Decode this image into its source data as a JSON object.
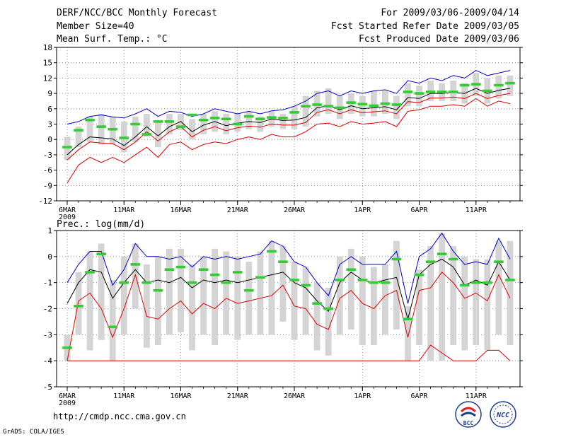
{
  "header": {
    "title": "DERF/NCC/BCC Monthly Forecast",
    "member_size": "Member Size=40",
    "variable": "Mean Surf. Temp.: °C",
    "forecast_period": "For 2009/03/06-2009/04/14",
    "start_date": "Fcst Started Refer Date 2009/03/05",
    "produced_date": "Fcst Produced Date 2009/03/06"
  },
  "footer": {
    "url": "http://cmdp.ncc.cma.gov.cn",
    "credit": "GrADS: COLA/IGES",
    "logo_bcc": "BCC",
    "logo_ncc": "NCC"
  },
  "colors": {
    "box": "#d4d4d4",
    "mean": "#000000",
    "upper": "#0000cc",
    "lower": "#dd0000",
    "median": "#33cc33"
  },
  "chart_data": [
    {
      "type": "box-plume",
      "title": "Mean Surf. Temp.: °C",
      "ylim": [
        -12,
        18
      ],
      "yticks": [
        -12,
        -9,
        -6,
        -3,
        0,
        3,
        6,
        9,
        12,
        15,
        18
      ],
      "xlabel_year": "2009",
      "xticks": [
        {
          "day": 1,
          "label": "6MAR"
        },
        {
          "day": 6,
          "label": "11MAR"
        },
        {
          "day": 11,
          "label": "16MAR"
        },
        {
          "day": 16,
          "label": "21MAR"
        },
        {
          "day": 21,
          "label": "26MAR"
        },
        {
          "day": 27,
          "label": "1APR"
        },
        {
          "day": 32,
          "label": "6APR"
        },
        {
          "day": 37,
          "label": "11APR"
        }
      ],
      "days": 40,
      "mean": [
        -3.0,
        -1.0,
        0.5,
        0.3,
        0.1,
        -1.2,
        0.5,
        2.5,
        0.7,
        2.5,
        3.5,
        1.5,
        2.8,
        3.5,
        2.7,
        3.2,
        3.5,
        3.3,
        4.0,
        3.7,
        3.8,
        4.3,
        6.2,
        6.6,
        5.8,
        6.6,
        6.0,
        6.2,
        6.4,
        5.8,
        8.2,
        8.0,
        9.0,
        9.0,
        9.2,
        9.0,
        10.0,
        9.0,
        9.6,
        10.0
      ],
      "upper": [
        3.0,
        3.5,
        4.5,
        4.8,
        4.4,
        4.2,
        5.0,
        6.0,
        4.5,
        5.5,
        5.3,
        4.5,
        5.0,
        6.0,
        5.5,
        5.0,
        5.5,
        5.0,
        5.6,
        5.8,
        6.5,
        7.5,
        9.0,
        9.5,
        8.5,
        9.5,
        9.0,
        9.5,
        9.7,
        9.0,
        11.5,
        11.0,
        12.0,
        11.5,
        12.5,
        12.0,
        13.5,
        12.5,
        13.0,
        13.5
      ],
      "lower": [
        -8.5,
        -5.0,
        -3.5,
        -4.5,
        -3.5,
        -4.5,
        -3.0,
        -1.5,
        -3.5,
        -1.0,
        -0.5,
        -2.0,
        -1.0,
        -0.5,
        -0.8,
        0.0,
        0.5,
        0.0,
        1.0,
        0.5,
        0.5,
        1.5,
        3.0,
        3.2,
        2.5,
        3.5,
        3.0,
        3.2,
        3.5,
        2.5,
        5.5,
        5.8,
        6.5,
        6.5,
        6.8,
        6.5,
        8.0,
        6.5,
        7.5,
        7.0
      ],
      "lower_quartile_line": [
        -4.0,
        -2.0,
        -0.5,
        -0.7,
        -0.8,
        -2.0,
        -0.5,
        1.5,
        -0.3,
        1.5,
        2.5,
        0.5,
        1.8,
        2.5,
        1.7,
        2.3,
        2.6,
        2.4,
        3.0,
        2.8,
        2.8,
        3.3,
        5.3,
        5.8,
        5.0,
        5.8,
        5.2,
        5.4,
        5.6,
        5.0,
        7.4,
        7.2,
        8.1,
        8.1,
        8.3,
        8.0,
        9.0,
        8.0,
        8.6,
        9.0
      ],
      "median": [
        -1.5,
        1.8,
        3.8,
        2.5,
        2.0,
        0.3,
        3.0,
        1.0,
        3.5,
        3.5,
        2.5,
        4.8,
        3.8,
        4.2,
        4.0,
        3.0,
        4.5,
        4.0,
        4.3,
        4.2,
        5.3,
        6.5,
        6.8,
        6.5,
        6.2,
        7.2,
        6.9,
        6.6,
        7.0,
        6.8,
        9.3,
        9.0,
        9.3,
        9.3,
        9.3,
        10.6,
        10.8,
        9.5,
        10.6,
        11.0
      ],
      "box_low": [
        -4.0,
        -1.5,
        -0.5,
        -1.0,
        -1.0,
        -2.5,
        -0.5,
        0.5,
        -1.5,
        1.0,
        1.8,
        0.0,
        1.0,
        1.5,
        1.0,
        1.5,
        2.0,
        1.5,
        2.5,
        2.0,
        2.0,
        2.5,
        4.5,
        5.0,
        4.0,
        5.0,
        4.5,
        4.5,
        5.0,
        4.0,
        6.5,
        6.5,
        7.5,
        7.5,
        7.5,
        7.0,
        8.5,
        7.0,
        8.0,
        8.5
      ],
      "box_high": [
        0.5,
        2.5,
        4.5,
        5.0,
        4.5,
        3.5,
        4.5,
        5.0,
        3.5,
        5.0,
        5.0,
        4.0,
        5.0,
        5.5,
        5.0,
        5.0,
        5.5,
        4.5,
        5.5,
        5.0,
        6.5,
        8.5,
        9.5,
        10.0,
        8.5,
        9.0,
        8.5,
        9.5,
        9.5,
        8.5,
        11.0,
        10.5,
        11.5,
        11.0,
        11.5,
        11.0,
        13.0,
        12.0,
        12.5,
        12.5
      ]
    },
    {
      "type": "box-plume",
      "title": "Prec.: log(mm/d)",
      "ylim": [
        -5,
        1
      ],
      "yticks": [
        -5,
        -4,
        -3,
        -2,
        -1,
        0,
        1
      ],
      "xlabel_year": "2009",
      "xticks": [
        {
          "day": 1,
          "label": "6MAR"
        },
        {
          "day": 6,
          "label": "11MAR"
        },
        {
          "day": 11,
          "label": "16MAR"
        },
        {
          "day": 16,
          "label": "21MAR"
        },
        {
          "day": 21,
          "label": "26MAR"
        },
        {
          "day": 27,
          "label": "1APR"
        },
        {
          "day": 32,
          "label": "6APR"
        },
        {
          "day": 37,
          "label": "11APR"
        }
      ],
      "days": 40,
      "mean": [
        -1.8,
        -1.0,
        -0.5,
        -0.6,
        -1.6,
        -1.0,
        -0.5,
        -1.0,
        -0.9,
        -1.0,
        -0.8,
        -1.2,
        -0.9,
        -1.0,
        -0.9,
        -1.0,
        -0.9,
        -0.8,
        -0.7,
        -0.6,
        -1.0,
        -1.2,
        -1.7,
        -2.1,
        -1.0,
        -0.6,
        -0.9,
        -1.0,
        -0.9,
        -0.8,
        -2.4,
        -0.7,
        -0.3,
        -0.1,
        -0.4,
        -1.1,
        -0.9,
        -1.1,
        -0.2,
        -0.9
      ],
      "upper": [
        -1.0,
        -0.3,
        0.2,
        0.2,
        -1.1,
        -0.5,
        0.5,
        0.0,
        0.0,
        -0.1,
        0.0,
        -0.4,
        0.0,
        -0.1,
        0.0,
        -0.1,
        0.0,
        0.1,
        0.6,
        0.4,
        -0.2,
        -0.4,
        -1.0,
        -1.5,
        -0.3,
        0.0,
        -0.3,
        -0.3,
        -0.3,
        0.2,
        -1.8,
        0.0,
        0.3,
        0.9,
        0.2,
        -0.3,
        -0.2,
        -0.3,
        0.7,
        -0.1
      ],
      "lower": [
        -4.0,
        -1.7,
        -1.4,
        -2.0,
        -3.1,
        -2.0,
        -0.7,
        -2.3,
        -2.4,
        -2.0,
        -1.7,
        -2.2,
        -1.8,
        -2.0,
        -1.6,
        -1.8,
        -1.7,
        -1.6,
        -1.5,
        -1.1,
        -1.9,
        -2.0,
        -2.6,
        -2.8,
        -1.6,
        -1.3,
        -1.8,
        -2.0,
        -1.5,
        -1.3,
        -3.1,
        -1.3,
        -1.2,
        -0.6,
        -1.0,
        -1.6,
        -1.4,
        -1.7,
        -0.7,
        -1.6
      ],
      "lower_tail": [
        -4.0,
        -4.0,
        -4.0,
        -4.0,
        -4.0,
        -4.0,
        -4.0,
        -4.0,
        -4.0,
        -4.0,
        -4.0,
        -4.0,
        -4.0,
        -4.0,
        -4.0,
        -4.0,
        -4.0,
        -4.0,
        -4.0,
        -4.0,
        -4.0,
        -4.0,
        -4.0,
        -4.0,
        -4.0,
        -4.0,
        -4.0,
        -4.0,
        -4.0,
        -4.0,
        -4.0,
        -4.0,
        -3.4,
        -3.7,
        -4.0,
        -4.0,
        -4.0,
        -3.6,
        -3.6,
        -4.0
      ],
      "median": [
        -3.5,
        -1.9,
        -0.6,
        0.1,
        -2.7,
        -1.0,
        -0.3,
        -1.0,
        -1.3,
        -0.5,
        -0.4,
        -1.0,
        -0.5,
        -0.7,
        -1.0,
        -0.6,
        -1.3,
        -0.8,
        0.2,
        -0.2,
        -0.9,
        -1.1,
        -1.8,
        -2.0,
        -0.9,
        -0.5,
        -0.9,
        -1.0,
        -1.0,
        -0.1,
        -2.4,
        -0.7,
        -0.2,
        0.1,
        -0.1,
        -1.1,
        -1.0,
        -1.0,
        -0.2,
        -0.9
      ],
      "box_low": [
        -4.0,
        -3.0,
        -3.6,
        -3.2,
        -4.0,
        -3.0,
        -2.0,
        -3.5,
        -3.4,
        -3.0,
        -2.9,
        -3.6,
        -3.0,
        -3.4,
        -3.0,
        -3.2,
        -3.0,
        -3.0,
        -3.0,
        -2.5,
        -3.2,
        -3.0,
        -3.6,
        -3.8,
        -3.0,
        -2.8,
        -3.4,
        -3.4,
        -3.0,
        -2.8,
        -4.0,
        -3.4,
        -4.0,
        -4.0,
        -3.4,
        -3.6,
        -3.4,
        -3.6,
        -3.0,
        -3.4
      ],
      "box_high": [
        -3.0,
        -0.6,
        0.2,
        0.5,
        -0.9,
        0.0,
        0.5,
        -0.3,
        0.0,
        0.3,
        0.3,
        -0.3,
        0.0,
        0.3,
        0.2,
        0.0,
        -0.2,
        0.2,
        0.6,
        0.4,
        -0.2,
        -0.4,
        -1.0,
        -1.2,
        0.0,
        0.3,
        0.0,
        -0.4,
        -0.3,
        0.6,
        -1.9,
        -0.5,
        0.4,
        0.9,
        0.4,
        0.0,
        -0.1,
        -0.1,
        0.6,
        0.6
      ]
    }
  ]
}
